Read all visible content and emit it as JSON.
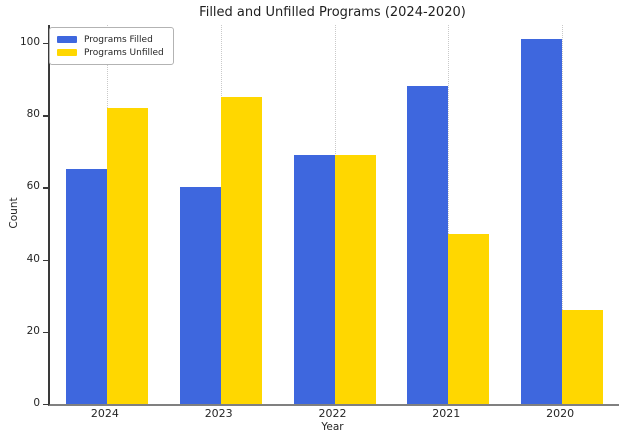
{
  "chart_data": {
    "type": "bar",
    "title": "Filled and Unfilled Programs (2024-2020)",
    "xlabel": "Year",
    "ylabel": "Count",
    "categories": [
      "2024",
      "2023",
      "2022",
      "2021",
      "2020"
    ],
    "series": [
      {
        "name": "Programs Filled",
        "color": "#3E67DE",
        "values": [
          65,
          60,
          69,
          88,
          101
        ]
      },
      {
        "name": "Programs Unfilled",
        "color": "#FFD700",
        "values": [
          82,
          85,
          69,
          47,
          26
        ]
      }
    ],
    "ylim": [
      0,
      105
    ],
    "yticks": [
      0,
      20,
      40,
      60,
      80,
      100
    ],
    "grid": "vertical-dotted",
    "legend_position": "upper-left",
    "colors": {
      "filled": "#3E67DE",
      "unfilled": "#FFD700",
      "left_spine": "#3a3a3a",
      "bottom_spine": "#808080",
      "gridline": "#c9c9c9"
    }
  }
}
